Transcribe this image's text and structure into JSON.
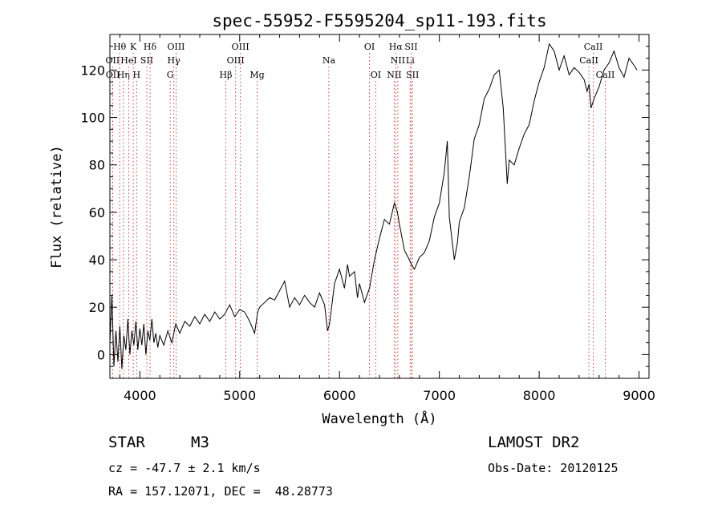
{
  "chart_data": {
    "type": "line",
    "title": "spec-55952-F5595204_sp11-193.fits",
    "xlabel": "Wavelength (Å)",
    "ylabel": "Flux (relative)",
    "xlim": [
      3700,
      9100
    ],
    "ylim": [
      -10,
      135
    ],
    "xticks": [
      4000,
      5000,
      6000,
      7000,
      8000,
      9000
    ],
    "yticks": [
      0,
      20,
      40,
      60,
      80,
      100,
      120
    ],
    "grid": false,
    "series": [
      {
        "color": "#000000",
        "points": [
          [
            3700,
            5
          ],
          [
            3720,
            25
          ],
          [
            3740,
            -5
          ],
          [
            3760,
            10
          ],
          [
            3780,
            -3
          ],
          [
            3800,
            12
          ],
          [
            3820,
            -6
          ],
          [
            3840,
            8
          ],
          [
            3860,
            2
          ],
          [
            3880,
            15
          ],
          [
            3900,
            0
          ],
          [
            3920,
            10
          ],
          [
            3940,
            4
          ],
          [
            3960,
            14
          ],
          [
            3980,
            2
          ],
          [
            4000,
            11
          ],
          [
            4020,
            4
          ],
          [
            4040,
            13
          ],
          [
            4060,
            0
          ],
          [
            4080,
            10
          ],
          [
            4100,
            6
          ],
          [
            4120,
            15
          ],
          [
            4140,
            5
          ],
          [
            4160,
            9
          ],
          [
            4180,
            3
          ],
          [
            4200,
            8
          ],
          [
            4240,
            4
          ],
          [
            4280,
            10
          ],
          [
            4320,
            5
          ],
          [
            4360,
            13
          ],
          [
            4400,
            9
          ],
          [
            4450,
            14
          ],
          [
            4500,
            12
          ],
          [
            4550,
            16
          ],
          [
            4600,
            13
          ],
          [
            4650,
            17
          ],
          [
            4700,
            14
          ],
          [
            4750,
            18
          ],
          [
            4800,
            15
          ],
          [
            4850,
            17
          ],
          [
            4900,
            21
          ],
          [
            4950,
            16
          ],
          [
            5000,
            19
          ],
          [
            5050,
            18
          ],
          [
            5100,
            14
          ],
          [
            5150,
            9
          ],
          [
            5180,
            18
          ],
          [
            5200,
            20
          ],
          [
            5250,
            22
          ],
          [
            5300,
            24
          ],
          [
            5350,
            23
          ],
          [
            5400,
            27
          ],
          [
            5450,
            31
          ],
          [
            5500,
            20
          ],
          [
            5550,
            24
          ],
          [
            5600,
            21
          ],
          [
            5650,
            25
          ],
          [
            5700,
            22
          ],
          [
            5750,
            20
          ],
          [
            5800,
            26
          ],
          [
            5850,
            21
          ],
          [
            5880,
            10
          ],
          [
            5900,
            13
          ],
          [
            5950,
            30
          ],
          [
            6000,
            36
          ],
          [
            6050,
            28
          ],
          [
            6080,
            38
          ],
          [
            6100,
            33
          ],
          [
            6150,
            35
          ],
          [
            6180,
            24
          ],
          [
            6200,
            30
          ],
          [
            6250,
            22
          ],
          [
            6300,
            28
          ],
          [
            6350,
            40
          ],
          [
            6400,
            49
          ],
          [
            6450,
            57
          ],
          [
            6500,
            55
          ],
          [
            6550,
            64
          ],
          [
            6580,
            60
          ],
          [
            6600,
            55
          ],
          [
            6650,
            44
          ],
          [
            6700,
            40
          ],
          [
            6720,
            38
          ],
          [
            6750,
            36
          ],
          [
            6800,
            41
          ],
          [
            6850,
            43
          ],
          [
            6900,
            48
          ],
          [
            6950,
            58
          ],
          [
            7000,
            64
          ],
          [
            7050,
            77
          ],
          [
            7080,
            90
          ],
          [
            7100,
            58
          ],
          [
            7150,
            40
          ],
          [
            7180,
            47
          ],
          [
            7200,
            56
          ],
          [
            7250,
            62
          ],
          [
            7300,
            75
          ],
          [
            7350,
            91
          ],
          [
            7400,
            97
          ],
          [
            7450,
            108
          ],
          [
            7500,
            112
          ],
          [
            7550,
            118
          ],
          [
            7600,
            120
          ],
          [
            7640,
            104
          ],
          [
            7660,
            88
          ],
          [
            7680,
            72
          ],
          [
            7700,
            82
          ],
          [
            7750,
            80
          ],
          [
            7800,
            87
          ],
          [
            7850,
            93
          ],
          [
            7900,
            97
          ],
          [
            7950,
            107
          ],
          [
            8000,
            115
          ],
          [
            8050,
            121
          ],
          [
            8100,
            131
          ],
          [
            8150,
            128
          ],
          [
            8200,
            120
          ],
          [
            8250,
            126
          ],
          [
            8300,
            118
          ],
          [
            8350,
            121
          ],
          [
            8400,
            119
          ],
          [
            8450,
            116
          ],
          [
            8480,
            111
          ],
          [
            8500,
            114
          ],
          [
            8520,
            104
          ],
          [
            8550,
            108
          ],
          [
            8600,
            113
          ],
          [
            8650,
            120
          ],
          [
            8700,
            123
          ],
          [
            8750,
            128
          ],
          [
            8800,
            121
          ],
          [
            8850,
            117
          ],
          [
            8900,
            125
          ],
          [
            8950,
            122
          ],
          [
            8980,
            120
          ]
        ]
      }
    ],
    "lines": [
      {
        "label": "Hθ",
        "x": 3798,
        "row": 0
      },
      {
        "label": "OII",
        "x": 3727,
        "row": 1
      },
      {
        "label": "OII",
        "x": 3729,
        "row": 2
      },
      {
        "label": "Hη",
        "x": 3835,
        "row": 2
      },
      {
        "label": "K",
        "x": 3934,
        "row": 0
      },
      {
        "label": "HeI",
        "x": 3889,
        "row": 1
      },
      {
        "label": "SII",
        "x": 4070,
        "row": 1
      },
      {
        "label": "H",
        "x": 3968,
        "row": 2
      },
      {
        "label": "Hδ",
        "x": 4102,
        "row": 0
      },
      {
        "label": "OIII",
        "x": 4363,
        "row": 0
      },
      {
        "label": "Hγ",
        "x": 4340,
        "row": 1
      },
      {
        "label": "G",
        "x": 4304,
        "row": 2
      },
      {
        "label": "OIII",
        "x": 5007,
        "row": 0
      },
      {
        "label": "OIII",
        "x": 4959,
        "row": 1
      },
      {
        "label": "Hβ",
        "x": 4861,
        "row": 2
      },
      {
        "label": "Mg",
        "x": 5175,
        "row": 2
      },
      {
        "label": "Na",
        "x": 5893,
        "row": 1
      },
      {
        "label": "OI",
        "x": 6300,
        "row": 0
      },
      {
        "label": "OI",
        "x": 6363,
        "row": 2
      },
      {
        "label": "Hα",
        "x": 6563,
        "row": 0
      },
      {
        "label": "SII",
        "x": 6717,
        "row": 0
      },
      {
        "label": "NII",
        "x": 6584,
        "row": 1
      },
      {
        "label": "Li",
        "x": 6708,
        "row": 1
      },
      {
        "label": "NII",
        "x": 6548,
        "row": 2
      },
      {
        "label": "SII",
        "x": 6731,
        "row": 2
      },
      {
        "label": "CaII",
        "x": 8542,
        "row": 0
      },
      {
        "label": "CaII",
        "x": 8498,
        "row": 1
      },
      {
        "label": "CaII",
        "x": 8662,
        "row": 2
      }
    ]
  },
  "footer": {
    "class_label": "STAR",
    "subclass": "M3",
    "survey": "LAMOST DR2",
    "cz": "cz = -47.7 ± 2.1 km/s",
    "obs_date": "Obs-Date: 20120125",
    "coords": "RA = 157.12071, DEC =  48.28773"
  }
}
